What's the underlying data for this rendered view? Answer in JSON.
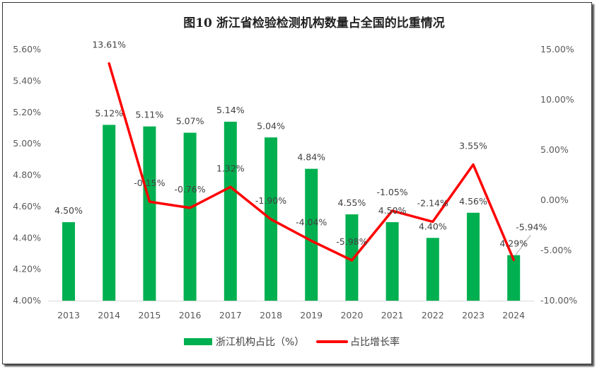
{
  "chart_data": {
    "type": "bar+line",
    "title": "图10  浙江省检验检测机构数量占全国的比重情况",
    "categories": [
      "2013",
      "2014",
      "2015",
      "2016",
      "2017",
      "2018",
      "2019",
      "2020",
      "2021",
      "2022",
      "2023",
      "2024"
    ],
    "series": [
      {
        "name": "浙江机构占比（%）",
        "type": "bar",
        "axis": "left",
        "color": "#00B050",
        "values": [
          4.5,
          5.12,
          5.11,
          5.07,
          5.14,
          5.04,
          4.84,
          4.55,
          4.5,
          4.4,
          4.56,
          4.29
        ],
        "labels": [
          "4.50%",
          "5.12%",
          "5.11%",
          "5.07%",
          "5.14%",
          "5.04%",
          "4.84%",
          "4.55%",
          "4.50%",
          "4.40%",
          "4.56%",
          "4.29%"
        ]
      },
      {
        "name": "占比增长率",
        "type": "line",
        "axis": "right",
        "color": "#FF0000",
        "values": [
          null,
          13.61,
          -0.15,
          -0.76,
          1.32,
          -1.9,
          -4.04,
          -5.98,
          -1.05,
          -2.14,
          3.55,
          -5.94
        ],
        "labels": [
          "",
          "13.61%",
          "-0.15%",
          "-0.76%",
          "1.32%",
          "-1.90%",
          "-4.04%",
          "-5.98%",
          "-1.05%",
          "-2.14%",
          "3.55%",
          "-5.94%"
        ]
      }
    ],
    "left_axis": {
      "ylim": [
        4.0,
        5.6
      ],
      "ticks": [
        "4.00%",
        "4.20%",
        "4.40%",
        "4.60%",
        "4.80%",
        "5.00%",
        "5.20%",
        "5.40%",
        "5.60%"
      ]
    },
    "right_axis": {
      "ylim": [
        -10,
        15
      ],
      "ticks": [
        "-10.00%",
        "-5.00%",
        "0.00%",
        "5.00%",
        "10.00%",
        "15.00%"
      ]
    },
    "grid": false,
    "legend": "bottom"
  }
}
